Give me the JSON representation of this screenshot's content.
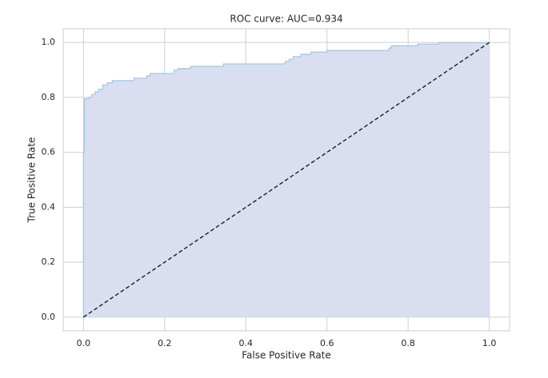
{
  "chart_data": {
    "type": "line",
    "title": "ROC curve: AUC=0.934",
    "x_label": "False Positive Rate",
    "y_label": "True Positive Rate",
    "xlim": [
      -0.05,
      1.05
    ],
    "ylim": [
      -0.05,
      1.05
    ],
    "xticks": [
      {
        "value": 0,
        "label": "0.0"
      },
      {
        "value": 0.2,
        "label": "0.2"
      },
      {
        "value": 0.4,
        "label": "0.4"
      },
      {
        "value": 0.6,
        "label": "0.6"
      },
      {
        "value": 0.8,
        "label": "0.8"
      },
      {
        "value": 1,
        "label": "1.0"
      }
    ],
    "yticks": [
      {
        "value": 0,
        "label": "0.0"
      },
      {
        "value": 0.2,
        "label": "0.2"
      },
      {
        "value": 0.4,
        "label": "0.4"
      },
      {
        "value": 0.6,
        "label": "0.6"
      },
      {
        "value": 0.8,
        "label": "0.8"
      },
      {
        "value": 1,
        "label": "1.0"
      }
    ],
    "grid": true,
    "series": [
      {
        "color": "#a4c8ea",
        "fill": "#d9dff0",
        "dash": false,
        "x": [
          0,
          0,
          0.002,
          0.002,
          0.012,
          0.012,
          0.02,
          0.02,
          0.028,
          0.028,
          0.037,
          0.037,
          0.047,
          0.047,
          0.059,
          0.059,
          0.071,
          0.071,
          0.124,
          0.124,
          0.156,
          0.156,
          0.164,
          0.164,
          0.223,
          0.223,
          0.233,
          0.233,
          0.264,
          0.264,
          0.345,
          0.345,
          0.497,
          0.497,
          0.507,
          0.507,
          0.517,
          0.517,
          0.536,
          0.536,
          0.56,
          0.56,
          0.6,
          0.6,
          0.753,
          0.753,
          0.759,
          0.759,
          0.824,
          0.824,
          0.874,
          0.874,
          1
        ],
        "values": [
          0,
          0.6,
          0.6,
          0.795,
          0.795,
          0.8,
          0.8,
          0.81,
          0.81,
          0.82,
          0.82,
          0.83,
          0.83,
          0.845,
          0.845,
          0.853,
          0.853,
          0.861,
          0.861,
          0.87,
          0.87,
          0.879,
          0.879,
          0.887,
          0.887,
          0.899,
          0.899,
          0.905,
          0.905,
          0.913,
          0.913,
          0.922,
          0.922,
          0.931,
          0.931,
          0.939,
          0.939,
          0.948,
          0.948,
          0.957,
          0.957,
          0.965,
          0.965,
          0.971,
          0.971,
          0.98,
          0.98,
          0.988,
          0.988,
          0.994,
          0.994,
          1,
          1
        ]
      },
      {
        "color": "#1a1a2e",
        "dash": true,
        "x": [
          0,
          1
        ],
        "values": [
          0,
          1
        ]
      }
    ]
  }
}
